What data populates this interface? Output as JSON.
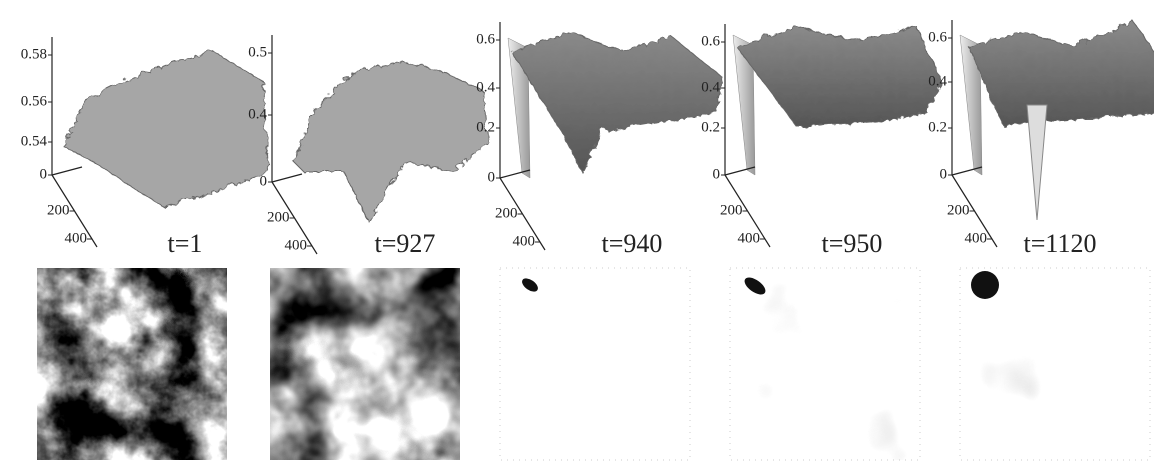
{
  "panels": [
    {
      "label": "t=1",
      "zticks": [
        "0.58",
        "0.56",
        "0.54",
        "0"
      ],
      "yticks": [
        "200",
        "400"
      ]
    },
    {
      "label": "t=927",
      "zticks": [
        "0.5",
        "0.4",
        "0"
      ],
      "yticks": [
        "200",
        "400"
      ]
    },
    {
      "label": "t=940",
      "zticks": [
        "0.6",
        "0.4",
        "0.2",
        "0"
      ],
      "yticks": [
        "200",
        "400"
      ]
    },
    {
      "label": "t=950",
      "zticks": [
        "0.6",
        "0.4",
        "0.2",
        "0"
      ],
      "yticks": [
        "200",
        "400"
      ]
    },
    {
      "label": "t=1120",
      "zticks": [
        "0.6",
        "0.4",
        "0.2",
        "0"
      ],
      "yticks": [
        "200",
        "400"
      ]
    }
  ]
}
